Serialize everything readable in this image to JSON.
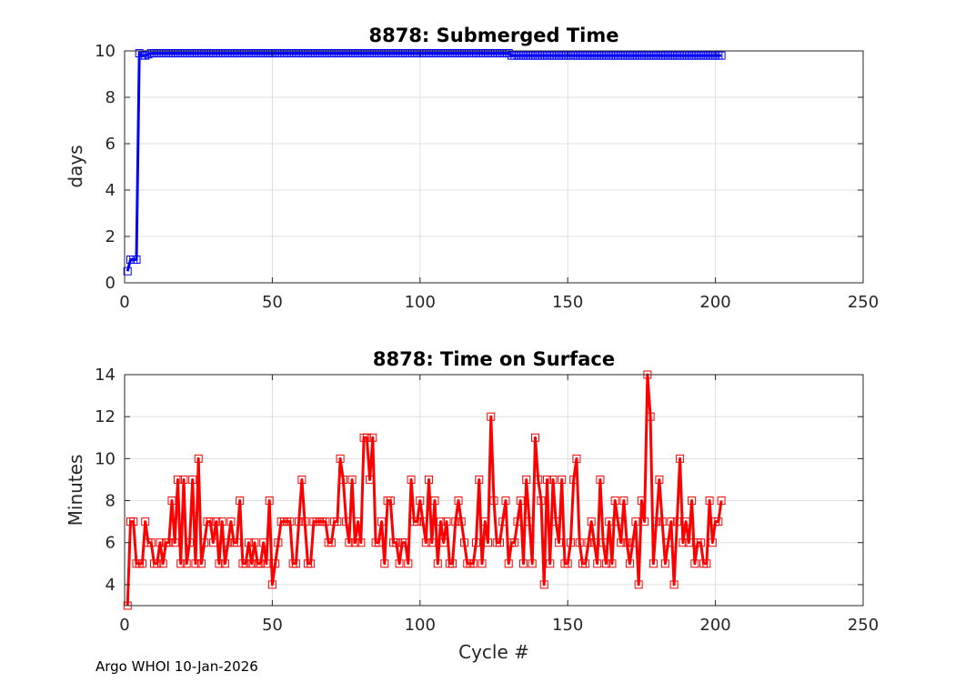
{
  "chart_data": [
    {
      "type": "line",
      "title": "8878: Submerged Time",
      "xlabel": "",
      "ylabel": "days",
      "xlim": [
        0,
        250
      ],
      "ylim": [
        0,
        10
      ],
      "xticks": [
        0,
        50,
        100,
        150,
        200,
        250
      ],
      "yticks": [
        0,
        2,
        4,
        6,
        8,
        10
      ],
      "grid": true,
      "line_color": "#0000ff",
      "marker": "square",
      "series": [
        {
          "name": "Submerged Time",
          "x": [
            1,
            2,
            3,
            4,
            5,
            6,
            7,
            8,
            9,
            10,
            11,
            12,
            13,
            14,
            15,
            16,
            17,
            18,
            19,
            20,
            21,
            22,
            23,
            24,
            25,
            26,
            27,
            28,
            29,
            30,
            31,
            32,
            33,
            34,
            35,
            36,
            37,
            38,
            39,
            40,
            41,
            42,
            43,
            44,
            45,
            46,
            47,
            48,
            49,
            50,
            51,
            52,
            53,
            54,
            55,
            56,
            57,
            58,
            59,
            60,
            61,
            62,
            63,
            64,
            65,
            66,
            67,
            68,
            69,
            70,
            71,
            72,
            73,
            74,
            75,
            76,
            77,
            78,
            79,
            80,
            81,
            82,
            83,
            84,
            85,
            86,
            87,
            88,
            89,
            90,
            91,
            92,
            93,
            94,
            95,
            96,
            97,
            98,
            99,
            100,
            101,
            102,
            103,
            104,
            105,
            106,
            107,
            108,
            109,
            110,
            111,
            112,
            113,
            114,
            115,
            116,
            117,
            118,
            119,
            120,
            121,
            122,
            123,
            124,
            125,
            126,
            127,
            128,
            129,
            130,
            131,
            132,
            133,
            134,
            135,
            136,
            137,
            138,
            139,
            140,
            141,
            142,
            143,
            144,
            145,
            146,
            147,
            148,
            149,
            150,
            151,
            152,
            153,
            154,
            155,
            156,
            157,
            158,
            159,
            160,
            161,
            162,
            163,
            164,
            165,
            166,
            167,
            168,
            169,
            170,
            171,
            172,
            173,
            174,
            175,
            176,
            177,
            178,
            179,
            180,
            181,
            182,
            183,
            184,
            185,
            186,
            187,
            188,
            189,
            190,
            191,
            192,
            193,
            194,
            195,
            196,
            197,
            198,
            199,
            200,
            201,
            202
          ],
          "values": [
            0.5,
            1,
            1,
            1,
            9.9,
            9.8,
            9.8,
            9.85,
            9.9,
            9.9,
            9.9,
            9.9,
            9.9,
            9.9,
            9.9,
            9.9,
            9.9,
            9.9,
            9.9,
            9.9,
            9.9,
            9.9,
            9.9,
            9.9,
            9.9,
            9.9,
            9.9,
            9.9,
            9.9,
            9.9,
            9.9,
            9.9,
            9.9,
            9.9,
            9.9,
            9.9,
            9.9,
            9.9,
            9.9,
            9.9,
            9.9,
            9.9,
            9.9,
            9.9,
            9.9,
            9.9,
            9.9,
            9.9,
            9.9,
            9.9,
            9.9,
            9.9,
            9.9,
            9.9,
            9.9,
            9.9,
            9.9,
            9.9,
            9.9,
            9.9,
            9.9,
            9.9,
            9.9,
            9.9,
            9.9,
            9.9,
            9.9,
            9.9,
            9.9,
            9.9,
            9.9,
            9.9,
            9.9,
            9.9,
            9.9,
            9.9,
            9.9,
            9.9,
            9.9,
            9.9,
            9.9,
            9.9,
            9.9,
            9.9,
            9.9,
            9.9,
            9.9,
            9.9,
            9.9,
            9.9,
            9.9,
            9.9,
            9.9,
            9.9,
            9.9,
            9.9,
            9.9,
            9.9,
            9.9,
            9.9,
            9.9,
            9.9,
            9.9,
            9.9,
            9.9,
            9.9,
            9.9,
            9.9,
            9.9,
            9.9,
            9.9,
            9.9,
            9.9,
            9.9,
            9.9,
            9.9,
            9.9,
            9.9,
            9.9,
            9.9,
            9.9,
            9.9,
            9.9,
            9.9,
            9.9,
            9.9,
            9.9,
            9.9,
            9.9,
            9.9,
            9.8,
            9.8,
            9.8,
            9.8,
            9.8,
            9.8,
            9.8,
            9.8,
            9.8,
            9.8,
            9.8,
            9.8,
            9.8,
            9.8,
            9.8,
            9.8,
            9.8,
            9.8,
            9.8,
            9.8,
            9.8,
            9.8,
            9.8,
            9.8,
            9.8,
            9.8,
            9.8,
            9.8,
            9.8,
            9.8,
            9.8,
            9.8,
            9.8,
            9.8,
            9.8,
            9.8,
            9.8,
            9.8,
            9.8,
            9.8,
            9.8,
            9.8,
            9.8,
            9.8,
            9.8,
            9.8,
            9.8,
            9.8,
            9.8,
            9.8,
            9.8,
            9.8,
            9.8,
            9.8,
            9.8,
            9.8,
            9.8,
            9.8,
            9.8,
            9.8,
            9.8,
            9.8,
            9.8,
            9.8,
            9.8,
            9.8,
            9.8,
            9.8,
            9.8,
            9.8,
            9.8,
            9.8
          ]
        }
      ]
    },
    {
      "type": "line",
      "title": "8878: Time on Surface",
      "xlabel": "Cycle #",
      "ylabel": "Minutes",
      "xlim": [
        0,
        250
      ],
      "ylim": [
        3,
        14
      ],
      "xticks": [
        0,
        50,
        100,
        150,
        200,
        250
      ],
      "yticks": [
        4,
        6,
        8,
        10,
        12,
        14
      ],
      "grid": true,
      "line_color": "#ff0000",
      "marker": "square",
      "series": [
        {
          "name": "Time on Surface",
          "x": [
            1,
            2,
            3,
            4,
            5,
            6,
            7,
            8,
            9,
            10,
            11,
            12,
            13,
            14,
            15,
            16,
            17,
            18,
            19,
            20,
            21,
            22,
            23,
            24,
            25,
            26,
            27,
            28,
            29,
            30,
            31,
            32,
            33,
            34,
            35,
            36,
            37,
            38,
            39,
            40,
            41,
            42,
            43,
            44,
            45,
            46,
            47,
            48,
            49,
            50,
            51,
            52,
            53,
            54,
            55,
            56,
            57,
            58,
            59,
            60,
            61,
            62,
            63,
            64,
            65,
            66,
            67,
            68,
            69,
            70,
            71,
            72,
            73,
            74,
            75,
            76,
            77,
            78,
            79,
            80,
            81,
            82,
            83,
            84,
            85,
            86,
            87,
            88,
            89,
            90,
            91,
            92,
            93,
            94,
            95,
            96,
            97,
            98,
            99,
            100,
            101,
            102,
            103,
            104,
            105,
            106,
            107,
            108,
            109,
            110,
            111,
            112,
            113,
            114,
            115,
            116,
            117,
            118,
            119,
            120,
            121,
            122,
            123,
            124,
            125,
            126,
            127,
            128,
            129,
            130,
            131,
            132,
            133,
            134,
            135,
            136,
            137,
            138,
            139,
            140,
            141,
            142,
            143,
            144,
            145,
            146,
            147,
            148,
            149,
            150,
            151,
            152,
            153,
            154,
            155,
            156,
            157,
            158,
            159,
            160,
            161,
            162,
            163,
            164,
            165,
            166,
            167,
            168,
            169,
            170,
            171,
            172,
            173,
            174,
            175,
            176,
            177,
            178,
            179,
            180,
            181,
            182,
            183,
            184,
            185,
            186,
            187,
            188,
            189,
            190,
            191,
            192,
            193,
            194,
            195,
            196,
            197,
            198,
            199,
            200,
            201,
            202
          ],
          "values": [
            3,
            7,
            7,
            5,
            5,
            5,
            7,
            6,
            6,
            5,
            5,
            6,
            5,
            6,
            6,
            8,
            6,
            9,
            5,
            9,
            5,
            6,
            9,
            5,
            10,
            5,
            6,
            7,
            7,
            6,
            7,
            5,
            7,
            5,
            6,
            7,
            6,
            6,
            8,
            5,
            5,
            6,
            5,
            6,
            5,
            5,
            6,
            5,
            8,
            4,
            5,
            6,
            7,
            7,
            7,
            7,
            5,
            5,
            7,
            9,
            7,
            5,
            5,
            7,
            7,
            7,
            7,
            7,
            6,
            6,
            7,
            7,
            10,
            9,
            7,
            6,
            9,
            6,
            7,
            6,
            11,
            11,
            9,
            11,
            6,
            6,
            7,
            5,
            8,
            8,
            6,
            6,
            5,
            6,
            6,
            5,
            9,
            7,
            7,
            8,
            7,
            6,
            9,
            6,
            8,
            5,
            7,
            6,
            7,
            5,
            5,
            7,
            8,
            7,
            6,
            5,
            5,
            5,
            6,
            9,
            5,
            7,
            6,
            12,
            8,
            6,
            6,
            7,
            8,
            5,
            6,
            6,
            7,
            8,
            5,
            9,
            7,
            5,
            11,
            9,
            8,
            4,
            9,
            5,
            9,
            7,
            6,
            9,
            5,
            5,
            6,
            9,
            10,
            6,
            5,
            5,
            6,
            7,
            6,
            5,
            9,
            6,
            5,
            7,
            5,
            8,
            7,
            6,
            8,
            6,
            5,
            6,
            7,
            4,
            8,
            7,
            14,
            12,
            5,
            7,
            9,
            7,
            5,
            6,
            7,
            4,
            7,
            10,
            6,
            7,
            6,
            8,
            5,
            6,
            6,
            5,
            5,
            8,
            6,
            7,
            7,
            8
          ]
        }
      ]
    }
  ],
  "footer": "Argo WHOI 10-Jan-2026"
}
